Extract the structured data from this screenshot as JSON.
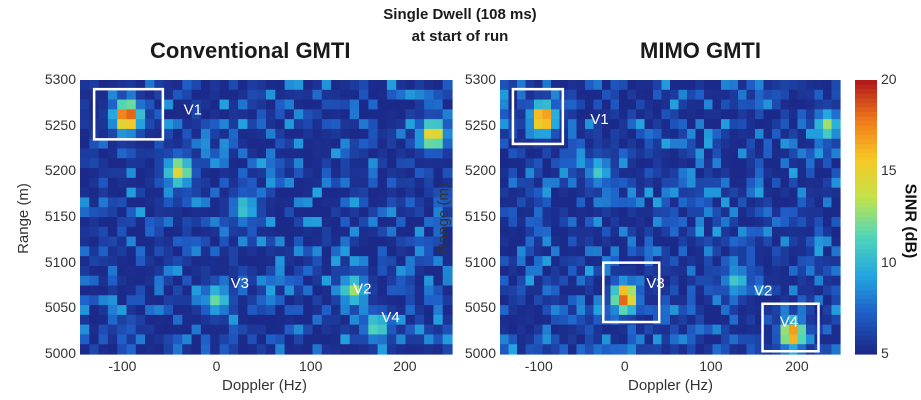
{
  "header": {
    "line1": "Single Dwell (108 ms)",
    "line2": "at start of run"
  },
  "colors": {
    "background_low": "#1c2f8e",
    "box": "#ffffff",
    "colorbar": [
      "#1b2a8a",
      "#1f5fc8",
      "#23a7e0",
      "#52d6b8",
      "#c3e34a",
      "#f7c825",
      "#f07a1a",
      "#b31b1b"
    ]
  },
  "chart_data": [
    {
      "type": "heatmap",
      "title": "Conventional GMTI",
      "xlabel": "Doppler (Hz)",
      "ylabel": "Range (m)",
      "xlim": [
        -145,
        250
      ],
      "ylim": [
        5000,
        5300
      ],
      "xticks": [
        -100,
        0,
        100,
        200
      ],
      "yticks": [
        5000,
        5050,
        5100,
        5150,
        5200,
        5250,
        5300
      ],
      "value_units": "SINR (dB)",
      "value_range": [
        5,
        20
      ],
      "hotspots": [
        {
          "x": -95,
          "y": 5260,
          "value": 20
        },
        {
          "x": -40,
          "y": 5200,
          "value": 15
        },
        {
          "x": 230,
          "y": 5240,
          "value": 16
        },
        {
          "x": 0,
          "y": 5060,
          "value": 12
        },
        {
          "x": 145,
          "y": 5070,
          "value": 13
        },
        {
          "x": 170,
          "y": 5030,
          "value": 12
        },
        {
          "x": 30,
          "y": 5160,
          "value": 11
        }
      ],
      "boxes": [
        {
          "label": "V1",
          "x0": -130,
          "x1": -57,
          "y0": 5235,
          "y1": 5290
        }
      ],
      "annotations": [
        {
          "text": "V1",
          "x": -35,
          "y": 5262
        },
        {
          "text": "V3",
          "x": 15,
          "y": 5072
        },
        {
          "text": "V2",
          "x": 145,
          "y": 5066
        },
        {
          "text": "V4",
          "x": 175,
          "y": 5035
        }
      ]
    },
    {
      "type": "heatmap",
      "title": "MIMO GMTI",
      "xlabel": "Doppler (Hz)",
      "ylabel": "Range (m)",
      "xlim": [
        -145,
        250
      ],
      "ylim": [
        5000,
        5300
      ],
      "xticks": [
        -100,
        0,
        100,
        200
      ],
      "yticks": [
        5000,
        5050,
        5100,
        5150,
        5200,
        5250,
        5300
      ],
      "value_units": "SINR (dB)",
      "value_range": [
        5,
        20
      ],
      "colorbar": {
        "label": "SINR (dB)",
        "ticks": [
          5,
          10,
          15,
          20
        ]
      },
      "hotspots": [
        {
          "x": -95,
          "y": 5258,
          "value": 19
        },
        {
          "x": 0,
          "y": 5062,
          "value": 19
        },
        {
          "x": 195,
          "y": 5022,
          "value": 18
        },
        {
          "x": 235,
          "y": 5250,
          "value": 13
        },
        {
          "x": -30,
          "y": 5200,
          "value": 11
        },
        {
          "x": 130,
          "y": 5080,
          "value": 11
        }
      ],
      "boxes": [
        {
          "label": "V1",
          "x0": -130,
          "x1": -72,
          "y0": 5230,
          "y1": 5290
        },
        {
          "label": "V3",
          "x0": -25,
          "x1": 40,
          "y0": 5035,
          "y1": 5100
        },
        {
          "label": "V4",
          "x0": 160,
          "x1": 225,
          "y0": 5003,
          "y1": 5055
        }
      ],
      "annotations": [
        {
          "text": "V1",
          "x": -40,
          "y": 5252
        },
        {
          "text": "V3",
          "x": 25,
          "y": 5072
        },
        {
          "text": "V2",
          "x": 150,
          "y": 5064
        },
        {
          "text": "V4",
          "x": 180,
          "y": 5030
        }
      ]
    }
  ]
}
